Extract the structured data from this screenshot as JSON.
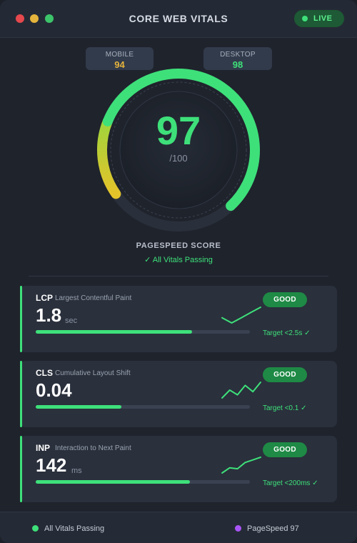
{
  "window": {
    "title": "CORE WEB VITALS",
    "live_label": "LIVE"
  },
  "devices": {
    "mobile": {
      "label": "MOBILE",
      "score": "94",
      "color": "#e5b43c"
    },
    "desktop": {
      "label": "DESKTOP",
      "score": "98",
      "color": "#3ee07a"
    }
  },
  "score": {
    "value": "97",
    "max_label": "/100",
    "label": "PAGESPEED SCORE",
    "status": "✓ All Vitals Passing",
    "fraction": 0.97
  },
  "metrics": [
    {
      "abbr": "LCP",
      "name": "Largest Contentful Paint",
      "value": "1.8",
      "unit": "sec",
      "status": "GOOD",
      "target": "Target <2.5s ✓",
      "progress": 0.73,
      "trend": [
        2,
        1,
        2,
        3,
        4
      ]
    },
    {
      "abbr": "CLS",
      "name": "Cumulative Layout Shift",
      "value": "0.04",
      "unit": "",
      "status": "GOOD",
      "target": "Target <0.1 ✓",
      "progress": 0.4,
      "trend": [
        2,
        2.5,
        2.2,
        2.8,
        2.4,
        3
      ]
    },
    {
      "abbr": "INP",
      "name": "Interaction to Next Paint",
      "value": "142",
      "unit": "ms",
      "status": "GOOD",
      "target": "Target <200ms ✓",
      "progress": 0.72,
      "trend": [
        1,
        2,
        1.8,
        3,
        3.5,
        4
      ]
    }
  ],
  "footer": {
    "left": {
      "label": "All Vitals Passing",
      "color": "#3ee07a"
    },
    "right": {
      "label": "PageSpeed 97",
      "color": "#a855f7"
    }
  },
  "colors": {
    "good": "#3ee07a",
    "warn": "#e5c42a",
    "mid": "#a8d63a"
  }
}
